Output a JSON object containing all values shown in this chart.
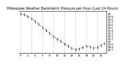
{
  "title": "Milwaukee Weather Barometric Pressure per Hour (Last 24 Hours)",
  "hours": [
    0,
    1,
    2,
    3,
    4,
    5,
    6,
    7,
    8,
    9,
    10,
    11,
    12,
    13,
    14,
    15,
    16,
    17,
    18,
    19,
    20,
    21,
    22,
    23
  ],
  "pressure": [
    30.01,
    29.97,
    29.91,
    29.83,
    29.74,
    29.63,
    29.52,
    29.41,
    29.3,
    29.2,
    29.1,
    29.02,
    28.93,
    28.85,
    28.78,
    28.72,
    28.75,
    28.8,
    28.85,
    28.82,
    28.78,
    28.8,
    28.88,
    28.95
  ],
  "line_color": "#cc0000",
  "marker_color": "#000000",
  "bg_color": "#ffffff",
  "grid_color": "#999999",
  "title_color": "#000000",
  "ylim": [
    28.6,
    30.1
  ],
  "ytick_values": [
    28.7,
    28.8,
    28.9,
    29.0,
    29.1,
    29.2,
    29.3,
    29.4,
    29.5,
    29.6,
    29.7,
    29.8,
    29.9,
    30.0
  ],
  "ytick_labels": [
    "28.7",
    "28.8",
    "28.9",
    "29",
    "29.1",
    "29.2",
    "29.3",
    "29.4",
    "29.5",
    "29.6",
    "29.7",
    "29.8",
    "29.9",
    "30"
  ],
  "title_fontsize": 3.5,
  "tick_fontsize": 2.8,
  "xlabel_fontsize": 2.8,
  "line_width": 0.7,
  "grid_interval": 3
}
